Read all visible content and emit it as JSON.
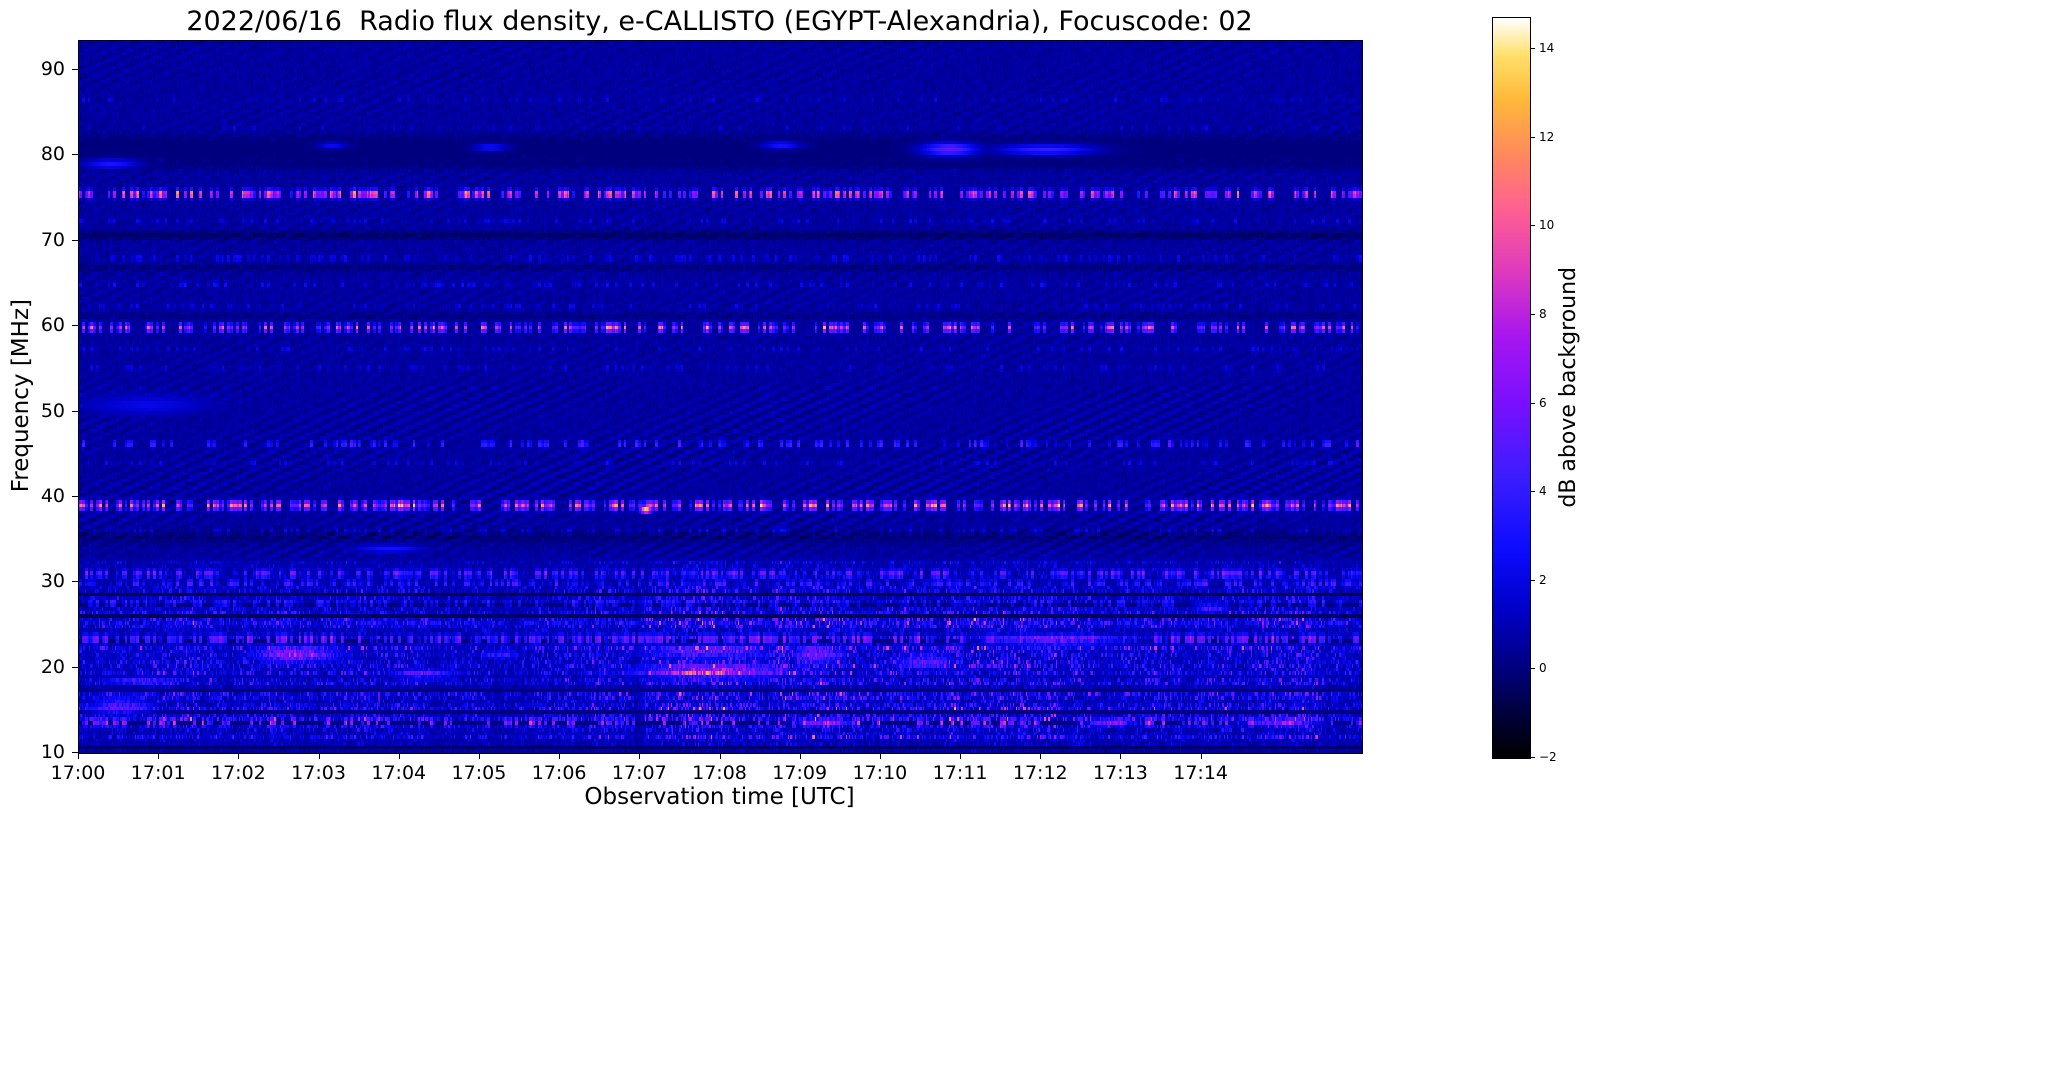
{
  "page": {
    "background": "#ffffff"
  },
  "chart_data": {
    "type": "heatmap",
    "title": "2022/06/16  Radio flux density, e-CALLISTO (EGYPT-Alexandria), Focuscode: 02",
    "xlabel": "Observation time [UTC]",
    "ylabel": "Frequency [MHz]",
    "x_range_minutes": [
      0,
      16
    ],
    "x_ticks": [
      "17:00",
      "17:01",
      "17:02",
      "17:03",
      "17:04",
      "17:05",
      "17:06",
      "17:07",
      "17:08",
      "17:09",
      "17:10",
      "17:11",
      "17:12",
      "17:13",
      "17:14"
    ],
    "y_range": [
      10,
      93.4
    ],
    "y_ticks": [
      90,
      80,
      70,
      60,
      50,
      40,
      30,
      20,
      10
    ],
    "colorbar": {
      "label": "dB above background",
      "ticks": [
        14,
        12,
        10,
        8,
        6,
        4,
        2,
        0,
        -2
      ],
      "vmin": -2,
      "vmax": 14.7
    },
    "colormap": {
      "name": "gnuplot2-like",
      "stops": [
        [
          0.0,
          "#000000"
        ],
        [
          0.06,
          "#00003c"
        ],
        [
          0.12,
          "#00007e"
        ],
        [
          0.2,
          "#0000c8"
        ],
        [
          0.28,
          "#0b0bff"
        ],
        [
          0.38,
          "#3c1dff"
        ],
        [
          0.48,
          "#7a0fff"
        ],
        [
          0.57,
          "#a816f0"
        ],
        [
          0.66,
          "#e03bbc"
        ],
        [
          0.74,
          "#ff5f93"
        ],
        [
          0.82,
          "#ff8b5a"
        ],
        [
          0.89,
          "#ffb93a"
        ],
        [
          0.95,
          "#ffe06a"
        ],
        [
          1.0,
          "#ffffff"
        ]
      ]
    },
    "background": {
      "mean_db": 0.6,
      "noise_db": 0.5,
      "ripple_amp_db": 0.28
    },
    "rfi_lines": [
      {
        "freq": 86.6,
        "peak_db": 1.8,
        "duty": 0.22,
        "width": 0.4
      },
      {
        "freq": 83.2,
        "peak_db": 1.6,
        "duty": 0.18,
        "width": 0.4
      },
      {
        "freq": 75.5,
        "peak_db": 11.5,
        "duty": 0.5,
        "width": 0.5
      },
      {
        "freq": 72.3,
        "peak_db": 2.0,
        "duty": 0.28,
        "width": 0.4
      },
      {
        "freq": 68.0,
        "peak_db": 2.6,
        "duty": 0.32,
        "width": 0.4
      },
      {
        "freq": 64.9,
        "peak_db": 2.4,
        "duty": 0.3,
        "width": 0.4
      },
      {
        "freq": 62.3,
        "peak_db": 2.0,
        "duty": 0.24,
        "width": 0.4
      },
      {
        "freq": 59.8,
        "peak_db": 11.0,
        "duty": 0.46,
        "width": 0.5
      },
      {
        "freq": 57.3,
        "peak_db": 2.0,
        "duty": 0.24,
        "width": 0.4
      },
      {
        "freq": 55.1,
        "peak_db": 2.2,
        "duty": 0.28,
        "width": 0.4
      },
      {
        "freq": 46.2,
        "peak_db": 5.5,
        "duty": 0.3,
        "width": 0.45
      },
      {
        "freq": 44.0,
        "peak_db": 2.2,
        "duty": 0.24,
        "width": 0.4
      },
      {
        "freq": 39.0,
        "peak_db": 12.0,
        "duty": 0.55,
        "width": 0.55
      },
      {
        "freq": 36.1,
        "peak_db": 2.0,
        "duty": 0.28,
        "width": 0.4
      },
      {
        "freq": 31.0,
        "peak_db": 6.5,
        "duty": 0.5,
        "width": 0.5
      },
      {
        "freq": 29.9,
        "peak_db": 5.0,
        "duty": 0.45,
        "width": 0.45
      },
      {
        "freq": 27.6,
        "peak_db": 4.5,
        "duty": 0.4,
        "width": 0.45
      },
      {
        "freq": 25.2,
        "peak_db": 3.5,
        "duty": 0.35,
        "width": 0.45
      },
      {
        "freq": 23.4,
        "peak_db": 7.5,
        "duty": 0.55,
        "width": 0.6
      },
      {
        "freq": 13.6,
        "peak_db": 8.5,
        "duty": 0.3,
        "width": 0.5
      }
    ],
    "dark_bands": [
      {
        "freq": 80.8,
        "width": 1.3,
        "depth_db": 1.4
      },
      {
        "freq": 78.9,
        "width": 0.5,
        "depth_db": 0.7
      },
      {
        "freq": 70.6,
        "width": 0.5,
        "depth_db": 0.9
      },
      {
        "freq": 66.8,
        "width": 0.4,
        "depth_db": 0.6
      },
      {
        "freq": 61.2,
        "width": 0.35,
        "depth_db": 0.5
      },
      {
        "freq": 35.3,
        "width": 0.8,
        "depth_db": 0.7
      }
    ],
    "noise_band": {
      "freq_max": 32.8,
      "base": 0.85,
      "bumps": [
        {
          "t": 8.2,
          "w": 2.0,
          "a": 0.5
        },
        {
          "t": 2.3,
          "w": 1.5,
          "a": 0.3
        },
        {
          "t": 11.3,
          "w": 1.6,
          "a": 0.45
        },
        {
          "t": 14.8,
          "w": 1.2,
          "a": 0.35
        }
      ],
      "gaps": [
        {
          "t": 6.95,
          "w": 0.07,
          "depth": 0.85
        },
        {
          "t": 5.6,
          "w": 0.05,
          "depth": 0.6
        }
      ]
    },
    "bursts": [
      {
        "t": [
          2.2,
          3.2
        ],
        "f": [
          20.7,
          22.3
        ],
        "peak_db": 9.5
      },
      {
        "t": [
          7.0,
          8.8
        ],
        "f": [
          18.7,
          20.3
        ],
        "peak_db": 11.0
      },
      {
        "t": [
          8.9,
          9.5
        ],
        "f": [
          20.6,
          22.4
        ],
        "peak_db": 8.5
      },
      {
        "t": [
          11.3,
          13.0
        ],
        "f": [
          22.6,
          23.9
        ],
        "peak_db": 9.5
      },
      {
        "t": [
          10.2,
          10.9
        ],
        "f": [
          20.0,
          21.5
        ],
        "peak_db": 7.0
      },
      {
        "t": [
          3.9,
          4.7
        ],
        "f": [
          18.6,
          19.8
        ],
        "peak_db": 6.5
      },
      {
        "t": [
          0.1,
          0.9
        ],
        "f": [
          14.6,
          16.6
        ],
        "peak_db": 6.0
      },
      {
        "t": [
          0.3,
          1.2
        ],
        "f": [
          18.0,
          19.0
        ],
        "peak_db": 5.5
      },
      {
        "t": [
          13.9,
          14.3
        ],
        "f": [
          26.6,
          27.6
        ],
        "peak_db": 6.0
      },
      {
        "t": [
          5.0,
          5.5
        ],
        "f": [
          21.0,
          22.0
        ],
        "peak_db": 5.0
      },
      {
        "t": [
          9.0,
          9.6
        ],
        "f": [
          13.2,
          13.9
        ],
        "peak_db": 7.0
      },
      {
        "t": [
          12.6,
          13.1
        ],
        "f": [
          13.2,
          13.9
        ],
        "peak_db": 6.5
      },
      {
        "t": [
          14.6,
          15.4
        ],
        "f": [
          13.2,
          14.0
        ],
        "peak_db": 6.5
      },
      {
        "t": [
          7.0,
          8.6
        ],
        "f": [
          21.0,
          22.6
        ],
        "peak_db": 6.0
      }
    ],
    "blobs": [
      {
        "t": [
          10.55,
          11.15
        ],
        "f": [
          80.1,
          81.3
        ],
        "peak_db": 5.5
      },
      {
        "t": [
          11.5,
          12.6
        ],
        "f": [
          80.2,
          81.1
        ],
        "peak_db": 4.2
      },
      {
        "t": [
          0.1,
          0.7
        ],
        "f": [
          78.6,
          79.4
        ],
        "peak_db": 3.2
      },
      {
        "t": [
          8.55,
          8.95
        ],
        "f": [
          80.9,
          81.5
        ],
        "peak_db": 3.2
      },
      {
        "t": [
          4.95,
          5.3
        ],
        "f": [
          80.6,
          81.2
        ],
        "peak_db": 2.8
      },
      {
        "t": [
          3.0,
          3.3
        ],
        "f": [
          80.9,
          81.4
        ],
        "peak_db": 2.4
      },
      {
        "t": [
          0.0,
          1.7
        ],
        "f": [
          49.6,
          52.0
        ],
        "peak_db": 2.1
      },
      {
        "t": [
          3.4,
          4.3
        ],
        "f": [
          33.6,
          34.3
        ],
        "peak_db": 3.0
      },
      {
        "t": [
          7.02,
          7.1
        ],
        "f": [
          38.2,
          38.7
        ],
        "peak_db": 15.0
      }
    ]
  }
}
